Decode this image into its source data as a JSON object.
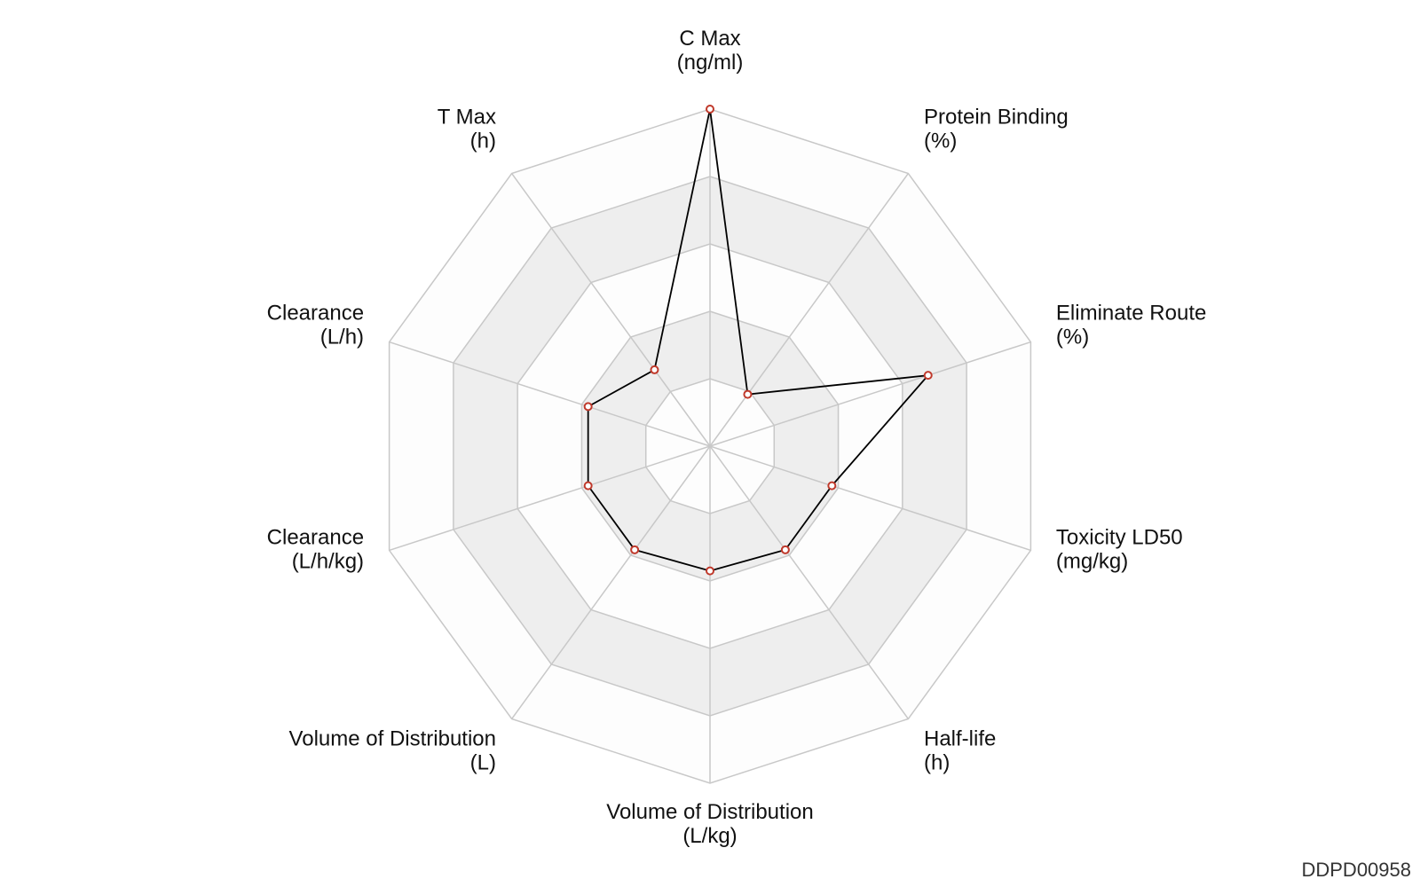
{
  "footer": {
    "id_text": "DDPD00958"
  },
  "colors": {
    "band_light": "#fdfdfd",
    "band_dark": "#eeeeee",
    "grid": "#c8c8c8",
    "series_line": "#000000",
    "marker_stroke": "#c0392b",
    "marker_fill": "#ffffff"
  },
  "chart_data": {
    "type": "radar",
    "title": "",
    "grid": true,
    "rings": 5,
    "range": [
      0,
      1
    ],
    "axes": [
      {
        "name": "C Max",
        "unit": "(ng/ml)"
      },
      {
        "name": "Protein Binding",
        "unit": "(%)"
      },
      {
        "name": "Eliminate Route",
        "unit": "(%)"
      },
      {
        "name": "Toxicity LD50",
        "unit": "(mg/kg)"
      },
      {
        "name": "Half-life",
        "unit": "(h)"
      },
      {
        "name": "Volume of Distribution",
        "unit": "(L/kg)"
      },
      {
        "name": "Volume of Distribution",
        "unit": "(L)"
      },
      {
        "name": "Clearance",
        "unit": "(L/h/kg)"
      },
      {
        "name": "Clearance",
        "unit": "(L/h)"
      },
      {
        "name": "T Max",
        "unit": "(h)"
      }
    ],
    "series": [
      {
        "values": [
          1.0,
          0.19,
          0.68,
          0.38,
          0.38,
          0.37,
          0.38,
          0.38,
          0.38,
          0.28
        ]
      }
    ]
  }
}
